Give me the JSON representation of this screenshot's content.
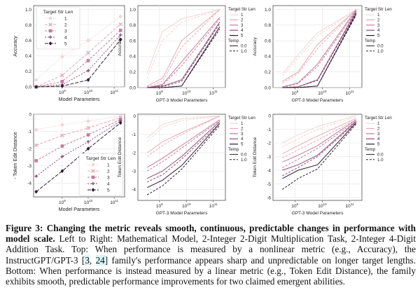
{
  "colors": [
    "#f2d4d6",
    "#e6a9b7",
    "#c87b98",
    "#8e4d76",
    "#2b1a33"
  ],
  "caption": {
    "label": "Figure 3:",
    "bold": "Changing the metric reveals smooth, continuous, predictable changes in performance with model scale.",
    "text_before_cite": "Left to Right: Mathematical Model, 2-Integer 2-Digit Multiplication Task, 2-Integer 4-Digit Addition Task. Top: When performance is measured by a nonlinear metric (e.g., Accuracy), the InstructGPT/GPT-3 ",
    "cite_open": "[",
    "cite_a": "3",
    "cite_sep": ", ",
    "cite_b": "24",
    "cite_close": "]",
    "text_after_cite": " family's performance appears sharp and unpredictable on longer target lengths. Bottom: When performance is instead measured by a linear metric (e.g., Token Edit Distance), the family exhibits smooth, predictable performance improvements for two claimed emergent abilities."
  },
  "chart_data": [
    {
      "type": "line",
      "panel": "top-left",
      "xlabel": "Model Parameters",
      "ylabel": "Accuracy",
      "xscale": "log",
      "x": [
        100000000,
        1000000000,
        10000000000,
        175000000000
      ],
      "xticks": [
        "10^9",
        "10^10",
        "10^11"
      ],
      "yticks": [
        "0.0",
        "0.2",
        "0.4",
        "0.6",
        "0.8",
        "1.0"
      ],
      "ylim": [
        0,
        1.05
      ],
      "grid": true,
      "legend": {
        "title": "Target Str Len",
        "position": "top-left"
      },
      "series": [
        {
          "name": "1",
          "values": [
            0.09,
            0.39,
            0.6,
            0.91
          ]
        },
        {
          "name": "2",
          "values": [
            0.0,
            0.15,
            0.44,
            0.81
          ]
        },
        {
          "name": "3",
          "values": [
            0.0,
            0.07,
            0.34,
            0.73
          ]
        },
        {
          "name": "4",
          "values": [
            0.0,
            0.03,
            0.21,
            0.67
          ]
        },
        {
          "name": "5",
          "values": [
            0.0,
            0.01,
            0.09,
            0.61
          ]
        }
      ]
    },
    {
      "type": "line",
      "panel": "top-middle",
      "xlabel": "GPT-3 Model Parameters",
      "ylabel": "Accuracy",
      "xscale": "log",
      "x": [
        350000000,
        1300000000,
        6700000000,
        175000000000
      ],
      "xticks": [
        "10^9",
        "10^10",
        "10^11"
      ],
      "yticks": [
        "0.0",
        "0.2",
        "0.4",
        "0.6",
        "0.8",
        "1.0"
      ],
      "ylim": [
        0,
        1.05
      ],
      "grid": true,
      "legend": {
        "title": "Target Str Len",
        "entries": [
          "1",
          "2",
          "3",
          "4",
          "5"
        ],
        "temp_title": "Temp",
        "temp_entries": [
          "0.0",
          "1.0"
        ],
        "position": "outside-right"
      },
      "series": [
        {
          "name": "1",
          "temp": "0.0",
          "values": [
            0.18,
            0.72,
            0.88,
            1.0
          ]
        },
        {
          "name": "1",
          "temp": "1.0",
          "values": [
            0.12,
            0.6,
            0.84,
            1.0
          ]
        },
        {
          "name": "2",
          "temp": "0.0",
          "values": [
            0.02,
            0.12,
            0.6,
            1.0
          ]
        },
        {
          "name": "2",
          "temp": "1.0",
          "values": [
            0.01,
            0.08,
            0.52,
            1.0
          ]
        },
        {
          "name": "3",
          "temp": "0.0",
          "values": [
            0.0,
            0.04,
            0.33,
            0.9
          ]
        },
        {
          "name": "3",
          "temp": "1.0",
          "values": [
            0.0,
            0.03,
            0.28,
            0.88
          ]
        },
        {
          "name": "4",
          "temp": "0.0",
          "values": [
            0.0,
            0.02,
            0.1,
            0.84
          ]
        },
        {
          "name": "4",
          "temp": "1.0",
          "values": [
            0.0,
            0.01,
            0.08,
            0.82
          ]
        },
        {
          "name": "5",
          "temp": "0.0",
          "values": [
            0.0,
            0.0,
            0.02,
            0.78
          ]
        },
        {
          "name": "5",
          "temp": "1.0",
          "values": [
            0.0,
            0.0,
            0.02,
            0.75
          ]
        }
      ]
    },
    {
      "type": "line",
      "panel": "top-right",
      "xlabel": "GPT-3 Model Parameters",
      "ylabel": "Accuracy",
      "xscale": "log",
      "x": [
        350000000,
        1300000000,
        6700000000,
        175000000000
      ],
      "xticks": [
        "10^9",
        "10^10",
        "10^11"
      ],
      "yticks": [
        "0.0",
        "0.2",
        "0.4",
        "0.6",
        "0.8",
        "1.0"
      ],
      "ylim": [
        0,
        1.05
      ],
      "grid": true,
      "legend": {
        "title": "Target Str Len",
        "entries": [
          "1",
          "2",
          "3",
          "4",
          "5"
        ],
        "temp_title": "Temp",
        "temp_entries": [
          "0.0",
          "1.0"
        ],
        "position": "outside-right"
      },
      "series": [
        {
          "name": "1",
          "temp": "0.0",
          "values": [
            0.18,
            0.42,
            0.7,
            1.0
          ]
        },
        {
          "name": "1",
          "temp": "1.0",
          "values": [
            0.15,
            0.38,
            0.66,
            1.0
          ]
        },
        {
          "name": "2",
          "temp": "0.0",
          "values": [
            0.08,
            0.2,
            0.55,
            1.0
          ]
        },
        {
          "name": "2",
          "temp": "1.0",
          "values": [
            0.06,
            0.18,
            0.5,
            1.0
          ]
        },
        {
          "name": "3",
          "temp": "0.0",
          "values": [
            0.01,
            0.06,
            0.3,
            1.0
          ]
        },
        {
          "name": "3",
          "temp": "1.0",
          "values": [
            0.0,
            0.05,
            0.27,
            0.98
          ]
        },
        {
          "name": "4",
          "temp": "0.0",
          "values": [
            0.0,
            0.01,
            0.1,
            0.98
          ]
        },
        {
          "name": "4",
          "temp": "1.0",
          "values": [
            0.0,
            0.01,
            0.09,
            0.96
          ]
        },
        {
          "name": "5",
          "temp": "0.0",
          "values": [
            0.0,
            0.0,
            0.02,
            0.95
          ]
        },
        {
          "name": "5",
          "temp": "1.0",
          "values": [
            0.0,
            0.0,
            0.02,
            0.93
          ]
        }
      ]
    },
    {
      "type": "line",
      "panel": "bottom-left",
      "xlabel": "Model Parameters",
      "ylabel": "- Token Edit Distance",
      "xscale": "log",
      "x": [
        100000000,
        1000000000,
        10000000000,
        175000000000
      ],
      "xticks": [
        "10^9",
        "10^10",
        "10^11"
      ],
      "yticks": [
        "-4",
        "-3",
        "-2",
        "-1",
        "0"
      ],
      "ylim": [
        -4.8,
        0
      ],
      "grid": true,
      "legend": {
        "title": "Target Str Len",
        "position": "bottom-right"
      },
      "series": [
        {
          "name": "1",
          "values": [
            -0.9,
            -0.62,
            -0.4,
            -0.1
          ]
        },
        {
          "name": "2",
          "values": [
            -1.8,
            -1.23,
            -0.8,
            -0.2
          ]
        },
        {
          "name": "3",
          "values": [
            -2.7,
            -1.85,
            -1.2,
            -0.3
          ]
        },
        {
          "name": "4",
          "values": [
            -3.6,
            -2.46,
            -1.6,
            -0.4
          ]
        },
        {
          "name": "5",
          "values": [
            -4.5,
            -3.3,
            -2.0,
            -0.5
          ]
        }
      ]
    },
    {
      "type": "line",
      "panel": "bottom-middle",
      "xlabel": "GPT-3 Model Parameters",
      "ylabel": "Token Edit Distance",
      "xscale": "log",
      "x": [
        350000000,
        1300000000,
        6700000000,
        175000000000
      ],
      "xticks": [
        "10^9",
        "10^10",
        "10^11"
      ],
      "yticks": [
        "-4",
        "-3",
        "-2",
        "-1",
        "0"
      ],
      "ylim": [
        -4.6,
        0.1
      ],
      "grid": true,
      "legend": {
        "title": "Target Str Len",
        "entries": [
          "1",
          "2",
          "3",
          "4",
          "5"
        ],
        "temp_title": "Temp",
        "temp_entries": [
          "0.0",
          "1.0"
        ],
        "position": "outside-right"
      },
      "series": [
        {
          "name": "1",
          "temp": "0.0",
          "values": [
            -1.2,
            -0.45,
            -0.15,
            0.0
          ]
        },
        {
          "name": "1",
          "temp": "1.0",
          "values": [
            -1.4,
            -0.6,
            -0.25,
            0.0
          ]
        },
        {
          "name": "2",
          "temp": "0.0",
          "values": [
            -2.0,
            -1.4,
            -0.9,
            0.0
          ]
        },
        {
          "name": "2",
          "temp": "1.0",
          "values": [
            -2.2,
            -1.6,
            -1.0,
            0.0
          ]
        },
        {
          "name": "3",
          "temp": "0.0",
          "values": [
            -2.8,
            -2.3,
            -1.6,
            -0.2
          ]
        },
        {
          "name": "3",
          "temp": "1.0",
          "values": [
            -3.0,
            -2.5,
            -1.75,
            -0.25
          ]
        },
        {
          "name": "4",
          "temp": "0.0",
          "values": [
            -3.4,
            -3.0,
            -2.2,
            -0.3
          ]
        },
        {
          "name": "4",
          "temp": "1.0",
          "values": [
            -3.6,
            -3.2,
            -2.35,
            -0.4
          ]
        },
        {
          "name": "5",
          "temp": "0.0",
          "values": [
            -3.9,
            -3.5,
            -2.7,
            -0.4
          ]
        },
        {
          "name": "5",
          "temp": "1.0",
          "values": [
            -4.3,
            -3.8,
            -2.9,
            -0.5
          ]
        }
      ]
    },
    {
      "type": "line",
      "panel": "bottom-right",
      "xlabel": "GPT-3 Model Parameters",
      "ylabel": "Token Edit Distance",
      "xscale": "log",
      "x": [
        350000000,
        1300000000,
        6700000000,
        175000000000
      ],
      "xticks": [
        "10^9",
        "10^10",
        "10^11"
      ],
      "yticks": [
        "-6",
        "-5",
        "-4",
        "-3",
        "-2",
        "-1",
        "0"
      ],
      "ylim": [
        -6.2,
        0.1
      ],
      "grid": true,
      "legend": {
        "title": "Target Str Len",
        "entries": [
          "1",
          "2",
          "3",
          "4",
          "5"
        ],
        "temp_title": "Temp",
        "temp_entries": [
          "0.0",
          "1.0"
        ],
        "position": "outside-right"
      },
      "series": [
        {
          "name": "1",
          "temp": "0.0",
          "values": [
            -2.0,
            -1.4,
            -0.8,
            0.0
          ]
        },
        {
          "name": "1",
          "temp": "1.0",
          "values": [
            -2.3,
            -1.7,
            -1.0,
            -0.1
          ]
        },
        {
          "name": "2",
          "temp": "0.0",
          "values": [
            -2.8,
            -2.2,
            -1.5,
            -0.2
          ]
        },
        {
          "name": "2",
          "temp": "1.0",
          "values": [
            -3.1,
            -2.5,
            -1.8,
            -0.3
          ]
        },
        {
          "name": "3",
          "temp": "0.0",
          "values": [
            -3.4,
            -2.9,
            -2.2,
            -0.3
          ]
        },
        {
          "name": "3",
          "temp": "1.0",
          "values": [
            -3.8,
            -3.2,
            -2.4,
            -0.4
          ]
        },
        {
          "name": "4",
          "temp": "0.0",
          "values": [
            -4.0,
            -3.6,
            -2.9,
            -0.4
          ]
        },
        {
          "name": "4",
          "temp": "1.0",
          "values": [
            -4.4,
            -3.8,
            -3.0,
            -0.5
          ]
        },
        {
          "name": "5",
          "temp": "0.0",
          "values": [
            -4.6,
            -4.0,
            -3.6,
            -0.5
          ]
        },
        {
          "name": "5",
          "temp": "1.0",
          "values": [
            -5.4,
            -4.6,
            -3.9,
            -0.6
          ]
        }
      ]
    }
  ]
}
